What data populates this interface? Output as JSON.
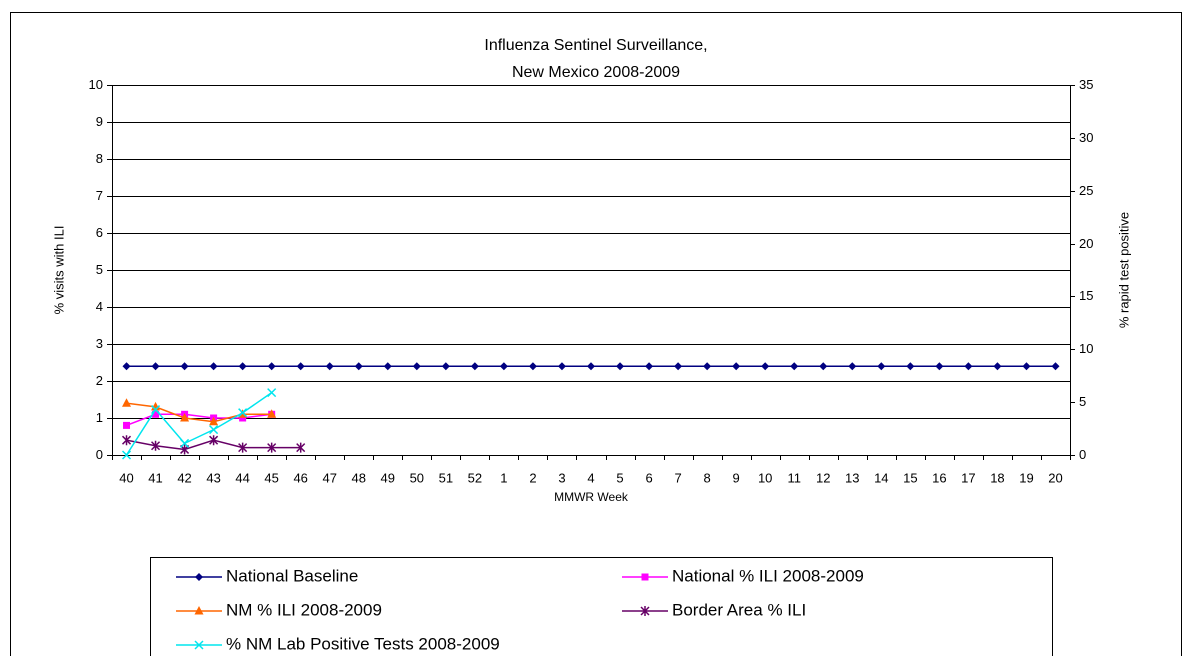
{
  "chart_data": {
    "type": "line",
    "title": [
      "Influenza Sentinel Surveillance,",
      "New Mexico 2008-2009"
    ],
    "x_label": "MMWR Week",
    "y_label": "% visits with ILI",
    "y2_label": "% rapid test positive",
    "categories": [
      "40",
      "41",
      "42",
      "43",
      "44",
      "45",
      "46",
      "47",
      "48",
      "49",
      "50",
      "51",
      "52",
      "1",
      "2",
      "3",
      "4",
      "5",
      "6",
      "7",
      "8",
      "9",
      "10",
      "11",
      "12",
      "13",
      "14",
      "15",
      "16",
      "17",
      "18",
      "19",
      "20"
    ],
    "ylim": [
      0,
      10
    ],
    "yticks": [
      0,
      1,
      2,
      3,
      4,
      5,
      6,
      7,
      8,
      9,
      10
    ],
    "y2lim": [
      0,
      35
    ],
    "y2ticks": [
      0,
      5,
      10,
      15,
      20,
      25,
      30,
      35
    ],
    "grid": true,
    "series": [
      {
        "name": "National Baseline",
        "color": "#000080",
        "marker": "diamond",
        "values": [
          2.4,
          2.4,
          2.4,
          2.4,
          2.4,
          2.4,
          2.4,
          2.4,
          2.4,
          2.4,
          2.4,
          2.4,
          2.4,
          2.4,
          2.4,
          2.4,
          2.4,
          2.4,
          2.4,
          2.4,
          2.4,
          2.4,
          2.4,
          2.4,
          2.4,
          2.4,
          2.4,
          2.4,
          2.4,
          2.4,
          2.4,
          2.4,
          2.4
        ]
      },
      {
        "name": "National % ILI 2008-2009",
        "color": "#ff00ff",
        "marker": "square",
        "values": [
          0.8,
          1.1,
          1.1,
          1.0,
          1.0,
          1.1,
          null,
          null,
          null,
          null,
          null,
          null,
          null,
          null,
          null,
          null,
          null,
          null,
          null,
          null,
          null,
          null,
          null,
          null,
          null,
          null,
          null,
          null,
          null,
          null,
          null,
          null,
          null
        ]
      },
      {
        "name": "NM % ILI 2008-2009",
        "color": "#ff6600",
        "marker": "triangle",
        "values": [
          1.4,
          1.3,
          1.0,
          0.9,
          1.1,
          1.1,
          null,
          null,
          null,
          null,
          null,
          null,
          null,
          null,
          null,
          null,
          null,
          null,
          null,
          null,
          null,
          null,
          null,
          null,
          null,
          null,
          null,
          null,
          null,
          null,
          null,
          null,
          null
        ]
      },
      {
        "name": "Border Area % ILI",
        "color": "#660066",
        "marker": "star",
        "values": [
          0.4,
          0.25,
          0.15,
          0.4,
          0.2,
          0.2,
          0.2,
          null,
          null,
          null,
          null,
          null,
          null,
          null,
          null,
          null,
          null,
          null,
          null,
          null,
          null,
          null,
          null,
          null,
          null,
          null,
          null,
          null,
          null,
          null,
          null,
          null,
          null
        ]
      },
      {
        "name": "% NM Lab Positive Tests 2008-2009",
        "color": "#00e5ee",
        "marker": "x",
        "axis": "y2",
        "values": [
          0,
          4.3,
          1.1,
          2.4,
          4.0,
          5.9,
          null,
          null,
          null,
          null,
          null,
          null,
          null,
          null,
          null,
          null,
          null,
          null,
          null,
          null,
          null,
          null,
          null,
          null,
          null,
          null,
          null,
          null,
          null,
          null,
          null,
          null,
          null
        ]
      }
    ]
  }
}
